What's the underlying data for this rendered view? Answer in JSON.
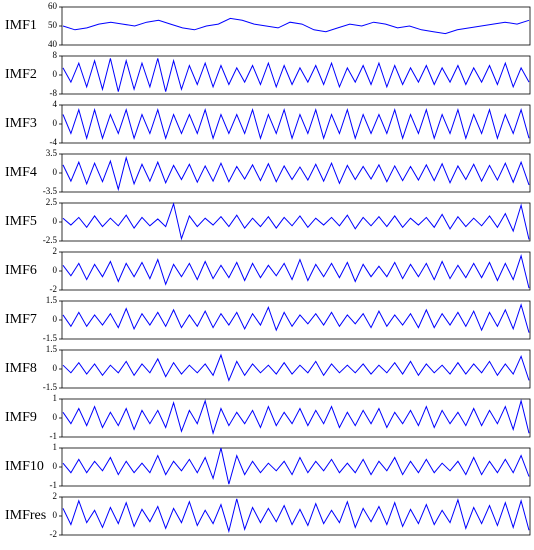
{
  "chart_data": [
    {
      "type": "line",
      "ylabel": "IMF1",
      "color": "#0000ff",
      "ylim": [
        40,
        60
      ],
      "yticks": [
        40,
        50,
        60
      ],
      "values": [
        50,
        48,
        49,
        51,
        52,
        51,
        50,
        52,
        53,
        51,
        49,
        48,
        50,
        51,
        54,
        53,
        51,
        50,
        49,
        52,
        51,
        48,
        47,
        49,
        51,
        50,
        52,
        51,
        49,
        50,
        48,
        47,
        46,
        48,
        49,
        50,
        51,
        52,
        51,
        53
      ]
    },
    {
      "type": "line",
      "ylabel": "IMF2",
      "color": "#0000ff",
      "ylim": [
        -8,
        8
      ],
      "yticks": [
        -8,
        0,
        8
      ],
      "values": [
        3,
        -3,
        5,
        -5,
        6,
        -6,
        7,
        -7,
        6,
        -6,
        5,
        -5,
        7,
        -7,
        6,
        -6,
        4,
        -4,
        5,
        -5,
        4,
        -4,
        3,
        -3,
        4,
        -4,
        5,
        -5,
        4,
        -4,
        3,
        -3,
        4,
        -4,
        5,
        -5,
        3,
        -3,
        4,
        -4,
        5,
        -5,
        4,
        -4,
        3,
        -3,
        4,
        -4,
        3,
        -3,
        4,
        -4,
        3,
        -3,
        4,
        -4,
        5,
        -5,
        3,
        -3
      ]
    },
    {
      "type": "line",
      "ylabel": "IMF3",
      "color": "#0000ff",
      "ylim": [
        -4,
        4
      ],
      "yticks": [
        -4,
        0,
        4
      ],
      "values": [
        2,
        -2,
        3,
        -3,
        3,
        -3,
        2,
        -2,
        3,
        -3,
        2,
        -2,
        3,
        -3,
        2,
        -2,
        2,
        -2,
        3,
        -3,
        2,
        -2,
        2,
        -2,
        3,
        -3,
        2,
        -2,
        3,
        -3,
        2,
        -2,
        3,
        -3,
        2,
        -2,
        3,
        -3,
        2,
        -2,
        2,
        -2,
        3,
        -3,
        2,
        -2,
        3,
        -3,
        2,
        -2,
        3,
        -3,
        2,
        -2,
        3,
        -3,
        2,
        -2,
        3,
        -3
      ]
    },
    {
      "type": "line",
      "ylabel": "IMF4",
      "color": "#0000ff",
      "ylim": [
        -3.5,
        3.5
      ],
      "yticks": [
        -3.5,
        0,
        3.5
      ],
      "values": [
        1.5,
        -1.5,
        2,
        -2,
        1.8,
        -1.6,
        2.2,
        -3,
        2.8,
        -2,
        1.6,
        -1.5,
        2,
        -1.8,
        1.4,
        -1.2,
        1.6,
        -1.7,
        1.3,
        -1.5,
        1.8,
        -1.6,
        1.2,
        -1.1,
        1.5,
        -1.4,
        1.7,
        -1.6,
        1.3,
        -1.2,
        1.1,
        -1.3,
        1.6,
        -1.5,
        1.8,
        -1.9,
        1.4,
        -1.2,
        1.2,
        -1.1,
        1.5,
        -1.6,
        1.3,
        -1.4,
        1.2,
        -1.3,
        1.5,
        -1.4,
        1.7,
        -1.8,
        1.3,
        -1.2,
        1.6,
        -1.5,
        1.4,
        -1.3,
        1.8,
        -1.7,
        2,
        -2.2
      ]
    },
    {
      "type": "line",
      "ylabel": "IMF5",
      "color": "#0000ff",
      "ylim": [
        -2.5,
        2.5
      ],
      "yticks": [
        -2.5,
        0,
        2.5
      ],
      "values": [
        0.5,
        -0.4,
        0.6,
        -0.7,
        0.8,
        -0.6,
        0.5,
        -0.5,
        0.9,
        -0.8,
        0.6,
        -0.5,
        0.4,
        -0.6,
        2.4,
        -2.2,
        0.8,
        -0.6,
        0.5,
        -0.4,
        0.7,
        -0.6,
        0.9,
        -0.8,
        0.5,
        -0.6,
        0.7,
        -0.8,
        0.6,
        -0.5,
        0.8,
        -0.7,
        0.5,
        -0.4,
        0.6,
        -0.5,
        0.9,
        -0.9,
        0.6,
        -0.5,
        0.7,
        -0.6,
        0.8,
        -0.7,
        0.5,
        -0.4,
        0.6,
        -0.7,
        1,
        -0.9,
        0.7,
        -0.6,
        0.5,
        -0.5,
        0.8,
        -0.7,
        1.1,
        -1.2,
        2.2,
        -2.3
      ]
    },
    {
      "type": "line",
      "ylabel": "IMF6",
      "color": "#0000ff",
      "ylim": [
        -2,
        2
      ],
      "yticks": [
        -2,
        0,
        2
      ],
      "values": [
        0.6,
        -0.5,
        0.8,
        -0.9,
        0.7,
        -0.6,
        1,
        -1.1,
        0.8,
        -0.6,
        0.9,
        -0.8,
        1.2,
        -1.4,
        0.7,
        -0.6,
        0.8,
        -0.9,
        1,
        -0.8,
        0.6,
        -0.7,
        0.9,
        -1,
        0.8,
        -0.7,
        0.6,
        -0.5,
        0.8,
        -0.9,
        1.2,
        -1,
        0.7,
        -0.6,
        0.8,
        -0.7,
        0.9,
        -1.1,
        0.7,
        -0.6,
        0.5,
        -0.6,
        0.9,
        -0.8,
        0.7,
        -0.6,
        0.8,
        -0.9,
        1,
        -0.8,
        0.6,
        -0.7,
        0.8,
        -0.7,
        0.9,
        -1,
        0.8,
        -0.9,
        1.6,
        -1.8
      ]
    },
    {
      "type": "line",
      "ylabel": "IMF7",
      "color": "#0000ff",
      "ylim": [
        -1.5,
        1.5
      ],
      "yticks": [
        -1.5,
        0,
        1.5
      ],
      "values": [
        0.4,
        -0.5,
        0.6,
        -0.5,
        0.4,
        -0.4,
        0.5,
        -0.6,
        0.9,
        -0.7,
        0.5,
        -0.4,
        0.6,
        -0.5,
        0.8,
        -0.6,
        0.4,
        -0.5,
        0.7,
        -0.6,
        0.5,
        -0.4,
        0.6,
        -0.7,
        0.5,
        -0.4,
        1,
        -0.8,
        0.6,
        -0.5,
        0.4,
        -0.3,
        0.5,
        -0.4,
        0.6,
        -0.5,
        0.4,
        -0.3,
        0.5,
        -0.6,
        0.7,
        -0.5,
        0.4,
        -0.4,
        0.5,
        -0.6,
        0.8,
        -0.6,
        0.5,
        -0.4,
        0.6,
        -0.5,
        0.7,
        -0.8,
        0.6,
        -0.5,
        0.8,
        -0.7,
        1.2,
        -1
      ]
    },
    {
      "type": "line",
      "ylabel": "IMF8",
      "color": "#0000ff",
      "ylim": [
        -1.5,
        1.5
      ],
      "yticks": [
        -1.5,
        0,
        1.5
      ],
      "values": [
        0.3,
        -0.3,
        0.5,
        -0.4,
        0.4,
        -0.5,
        0.3,
        -0.3,
        0.6,
        -0.5,
        0.4,
        -0.3,
        0.8,
        -0.6,
        0.5,
        -0.4,
        0.3,
        -0.3,
        0.4,
        -0.5,
        1.1,
        -0.9,
        0.6,
        -0.5,
        0.4,
        -0.3,
        0.3,
        -0.4,
        0.5,
        -0.4,
        0.3,
        -0.3,
        0.6,
        -0.5,
        0.4,
        -0.3,
        0.3,
        -0.3,
        0.4,
        -0.4,
        0.3,
        -0.3,
        0.5,
        -0.4,
        0.6,
        -0.5,
        0.4,
        -0.3,
        0.3,
        -0.4,
        0.5,
        -0.4,
        0.4,
        -0.3,
        0.6,
        -0.5,
        0.4,
        -0.4,
        1,
        -0.9
      ]
    },
    {
      "type": "line",
      "ylabel": "IMF9",
      "color": "#0000ff",
      "ylim": [
        -1,
        1
      ],
      "yticks": [
        -1,
        0,
        1
      ],
      "values": [
        0.3,
        -0.3,
        0.5,
        -0.4,
        0.6,
        -0.5,
        0.3,
        -0.4,
        0.5,
        -0.6,
        0.4,
        -0.3,
        0.4,
        -0.5,
        0.8,
        -0.7,
        0.4,
        -0.3,
        0.9,
        -0.8,
        0.5,
        -0.4,
        0.3,
        -0.3,
        0.4,
        -0.5,
        0.6,
        -0.4,
        0.3,
        -0.3,
        0.5,
        -0.4,
        0.4,
        -0.3,
        0.6,
        -0.5,
        0.3,
        -0.4,
        0.4,
        -0.3,
        0.5,
        -0.5,
        0.3,
        -0.3,
        0.4,
        -0.4,
        0.6,
        -0.5,
        0.4,
        -0.3,
        0.3,
        -0.4,
        0.5,
        -0.4,
        0.4,
        -0.3,
        0.6,
        -0.6,
        0.9,
        -0.8
      ]
    },
    {
      "type": "line",
      "ylabel": "IMF10",
      "color": "#0000ff",
      "ylim": [
        -1,
        1
      ],
      "yticks": [
        -1,
        0,
        1
      ],
      "values": [
        0.2,
        -0.3,
        0.4,
        -0.3,
        0.3,
        -0.2,
        0.5,
        -0.4,
        0.3,
        -0.3,
        0.2,
        -0.3,
        0.6,
        -0.4,
        0.3,
        -0.2,
        0.4,
        -0.3,
        0.5,
        -0.6,
        1,
        -0.9,
        0.6,
        -0.4,
        0.3,
        -0.3,
        0.2,
        -0.2,
        0.3,
        -0.4,
        0.5,
        -0.3,
        0.3,
        -0.2,
        0.4,
        -0.3,
        0.2,
        -0.3,
        0.4,
        -0.4,
        0.3,
        -0.2,
        0.5,
        -0.4,
        0.3,
        -0.3,
        0.4,
        -0.3,
        0.2,
        -0.2,
        0.3,
        -0.4,
        0.5,
        -0.4,
        0.3,
        -0.3,
        0.4,
        -0.3,
        0.6,
        -0.5
      ]
    },
    {
      "type": "line",
      "ylabel": "IMFres",
      "color": "#0000ff",
      "ylim": [
        -2,
        2
      ],
      "yticks": [
        -2,
        0,
        2
      ],
      "values": [
        0.8,
        -0.9,
        1.6,
        -0.7,
        0.6,
        -1.2,
        0.9,
        -0.8,
        1.4,
        -1.1,
        0.7,
        -0.6,
        1,
        -1.3,
        0.8,
        -0.7,
        1.5,
        -1,
        0.6,
        -0.8,
        1.2,
        -1.6,
        1.8,
        -1.4,
        0.9,
        -0.7,
        0.8,
        -0.6,
        1.1,
        -0.9,
        0.7,
        -1,
        1.3,
        -0.8,
        0.6,
        -0.7,
        1.5,
        -1.2,
        0.8,
        -0.6,
        1,
        -0.9,
        1.4,
        -1.1,
        0.7,
        -0.8,
        1.2,
        -0.9,
        0.6,
        -0.7,
        1.7,
        -1.3,
        0.9,
        -0.8,
        1.1,
        -1,
        1.4,
        -1.2,
        1.6,
        -1.5
      ]
    }
  ]
}
